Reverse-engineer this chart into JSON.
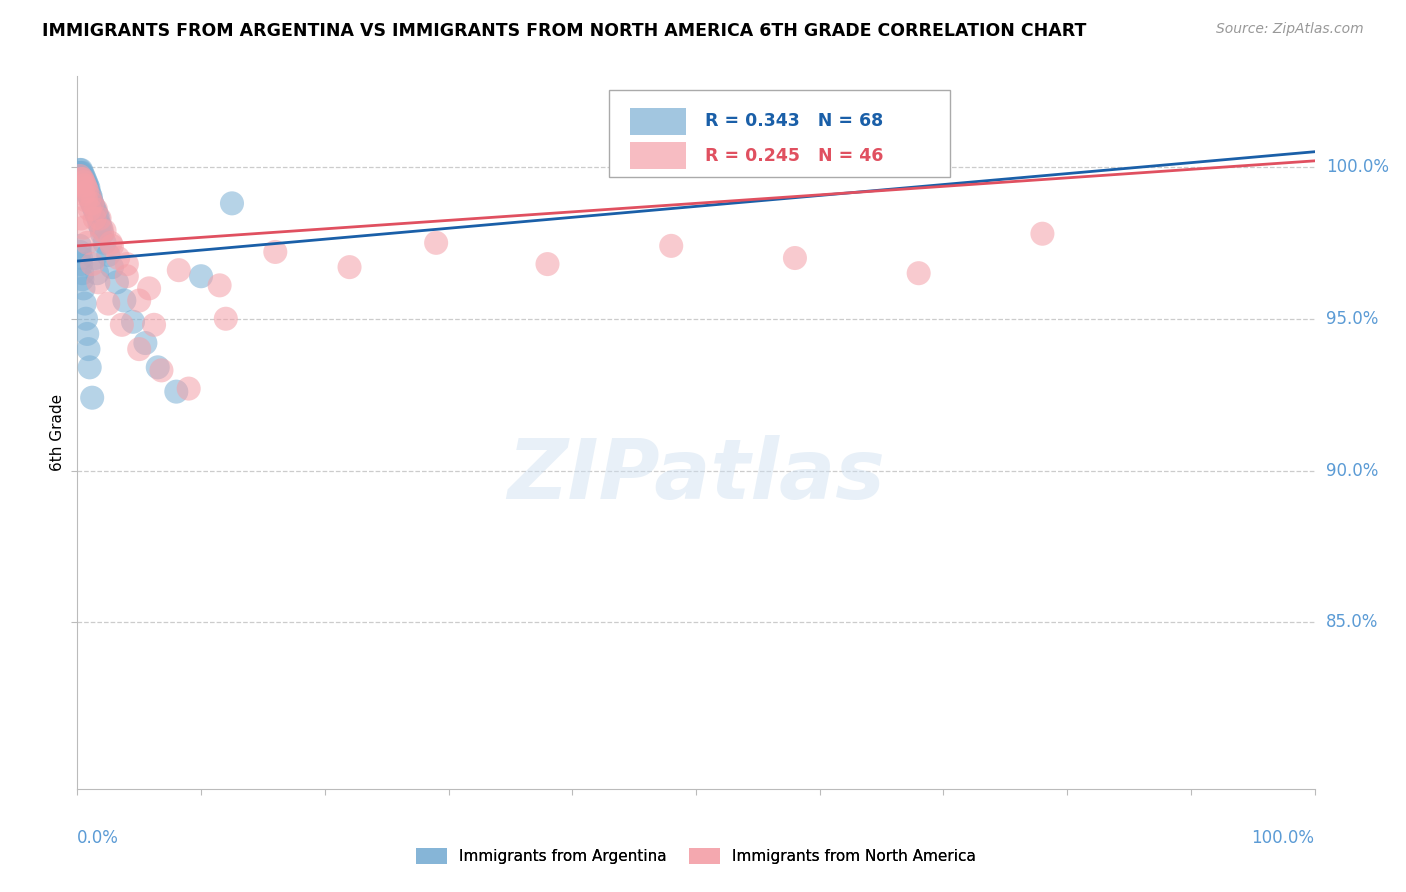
{
  "title": "IMMIGRANTS FROM ARGENTINA VS IMMIGRANTS FROM NORTH AMERICA 6TH GRADE CORRELATION CHART",
  "source": "Source: ZipAtlas.com",
  "ylabel": "6th Grade",
  "ytick_labels": [
    "100.0%",
    "95.0%",
    "90.0%",
    "85.0%"
  ],
  "ytick_values": [
    1.0,
    0.95,
    0.9,
    0.85
  ],
  "xlim": [
    0.0,
    1.0
  ],
  "ylim": [
    0.795,
    1.03
  ],
  "legend_blue_r": "R = 0.343",
  "legend_blue_n": "N = 68",
  "legend_pink_r": "R = 0.245",
  "legend_pink_n": "N = 46",
  "blue_color": "#7bafd4",
  "pink_color": "#f4a0a8",
  "blue_line_color": "#1a5fa8",
  "pink_line_color": "#e05060",
  "legend_blue_r_color": "#1a5fa8",
  "legend_pink_r_color": "#e05060",
  "blue_scatter_x": [
    0.001,
    0.001,
    0.001,
    0.002,
    0.002,
    0.002,
    0.002,
    0.003,
    0.003,
    0.003,
    0.003,
    0.003,
    0.004,
    0.004,
    0.004,
    0.004,
    0.005,
    0.005,
    0.005,
    0.006,
    0.006,
    0.006,
    0.007,
    0.007,
    0.007,
    0.008,
    0.008,
    0.009,
    0.009,
    0.01,
    0.01,
    0.011,
    0.011,
    0.012,
    0.013,
    0.014,
    0.015,
    0.016,
    0.017,
    0.018,
    0.019,
    0.02,
    0.022,
    0.025,
    0.028,
    0.032,
    0.038,
    0.045,
    0.055,
    0.065,
    0.08,
    0.1,
    0.125,
    0.002,
    0.002,
    0.003,
    0.003,
    0.004,
    0.004,
    0.005,
    0.006,
    0.007,
    0.008,
    0.009,
    0.01,
    0.012,
    0.014,
    0.016
  ],
  "blue_scatter_y": [
    0.998,
    0.997,
    0.996,
    0.999,
    0.998,
    0.997,
    0.996,
    0.999,
    0.998,
    0.997,
    0.996,
    0.995,
    0.998,
    0.997,
    0.996,
    0.995,
    0.997,
    0.996,
    0.994,
    0.996,
    0.995,
    0.993,
    0.995,
    0.994,
    0.992,
    0.994,
    0.993,
    0.993,
    0.992,
    0.991,
    0.99,
    0.99,
    0.989,
    0.988,
    0.987,
    0.986,
    0.985,
    0.984,
    0.983,
    0.981,
    0.98,
    0.978,
    0.975,
    0.971,
    0.967,
    0.962,
    0.956,
    0.949,
    0.942,
    0.934,
    0.926,
    0.964,
    0.988,
    0.974,
    0.972,
    0.97,
    0.968,
    0.965,
    0.963,
    0.96,
    0.955,
    0.95,
    0.945,
    0.94,
    0.934,
    0.924,
    0.97,
    0.965
  ],
  "pink_scatter_x": [
    0.002,
    0.003,
    0.004,
    0.005,
    0.006,
    0.007,
    0.008,
    0.01,
    0.012,
    0.015,
    0.018,
    0.022,
    0.027,
    0.033,
    0.04,
    0.05,
    0.062,
    0.005,
    0.007,
    0.01,
    0.014,
    0.02,
    0.028,
    0.04,
    0.058,
    0.082,
    0.115,
    0.16,
    0.22,
    0.29,
    0.38,
    0.48,
    0.58,
    0.68,
    0.78,
    0.003,
    0.005,
    0.008,
    0.012,
    0.017,
    0.025,
    0.036,
    0.05,
    0.068,
    0.09,
    0.12
  ],
  "pink_scatter_y": [
    0.997,
    0.996,
    0.996,
    0.995,
    0.994,
    0.993,
    0.992,
    0.99,
    0.988,
    0.986,
    0.983,
    0.979,
    0.975,
    0.97,
    0.964,
    0.956,
    0.948,
    0.991,
    0.989,
    0.986,
    0.983,
    0.979,
    0.974,
    0.968,
    0.96,
    0.966,
    0.961,
    0.972,
    0.967,
    0.975,
    0.968,
    0.974,
    0.97,
    0.965,
    0.978,
    0.983,
    0.98,
    0.975,
    0.968,
    0.962,
    0.955,
    0.948,
    0.94,
    0.933,
    0.927,
    0.95
  ],
  "blue_trend_x": [
    0.0,
    1.0
  ],
  "blue_trend_y": [
    0.969,
    1.005
  ],
  "pink_trend_x": [
    0.0,
    1.0
  ],
  "pink_trend_y": [
    0.974,
    1.002
  ]
}
